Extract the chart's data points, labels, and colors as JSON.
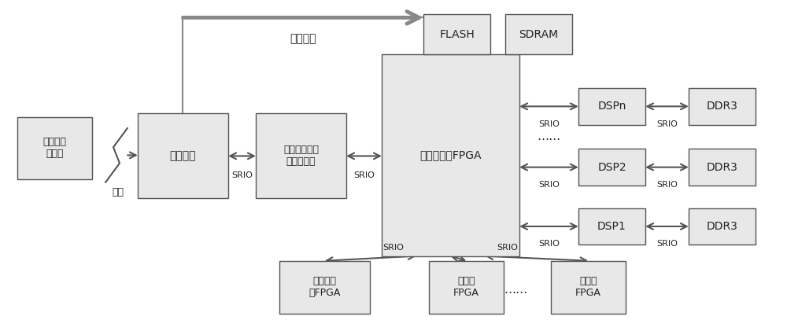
{
  "bg_color": "#ffffff",
  "box_fill": "#e8e8e8",
  "box_edge": "#555555",
  "arrow_color": "#555555",
  "text_color": "#222222",
  "boxes": {
    "remote": [
      0.022,
      0.44,
      0.095,
      0.195
    ],
    "host": [
      0.175,
      0.38,
      0.115,
      0.265
    ],
    "bus": [
      0.325,
      0.38,
      0.115,
      0.265
    ],
    "fpga_main": [
      0.485,
      0.2,
      0.175,
      0.63
    ],
    "fpga_freq": [
      0.355,
      0.02,
      0.115,
      0.165
    ],
    "fpga_pow": [
      0.545,
      0.02,
      0.095,
      0.165
    ],
    "fpga_meas": [
      0.7,
      0.02,
      0.095,
      0.165
    ],
    "dsp1": [
      0.735,
      0.235,
      0.085,
      0.115
    ],
    "ddr3_1": [
      0.875,
      0.235,
      0.085,
      0.115
    ],
    "dsp2": [
      0.735,
      0.42,
      0.085,
      0.115
    ],
    "ddr3_2": [
      0.875,
      0.42,
      0.085,
      0.115
    ],
    "dspn": [
      0.735,
      0.61,
      0.085,
      0.115
    ],
    "ddr3_n": [
      0.875,
      0.61,
      0.085,
      0.115
    ],
    "flash": [
      0.538,
      0.83,
      0.085,
      0.125
    ],
    "sdram": [
      0.642,
      0.83,
      0.085,
      0.125
    ]
  },
  "box_labels": {
    "remote": "远程升级\n服务器",
    "host": "主机程序",
    "bus": "总线接口在线\n配置管理器",
    "fpga_main": "中央处理的FPGA",
    "fpga_freq": "频率功率\n板FPGA",
    "fpga_pow": "电源板\nFPGA",
    "fpga_meas": "测量板\nFPGA",
    "dsp1": "DSP1",
    "ddr3_1": "DDR3",
    "dsp2": "DSP2",
    "ddr3_2": "DDR3",
    "dspn": "DSPn",
    "ddr3_n": "DDR3",
    "flash": "FLASH",
    "sdram": "SDRAM"
  },
  "fontsizes": {
    "remote": 9,
    "host": 10,
    "bus": 9,
    "fpga_main": 10,
    "fpga_freq": 9,
    "fpga_pow": 9,
    "fpga_meas": 9,
    "dsp1": 10,
    "ddr3_1": 10,
    "dsp2": 10,
    "ddr3_2": 10,
    "dspn": 10,
    "ddr3_n": 10,
    "flash": 10,
    "sdram": 10
  }
}
